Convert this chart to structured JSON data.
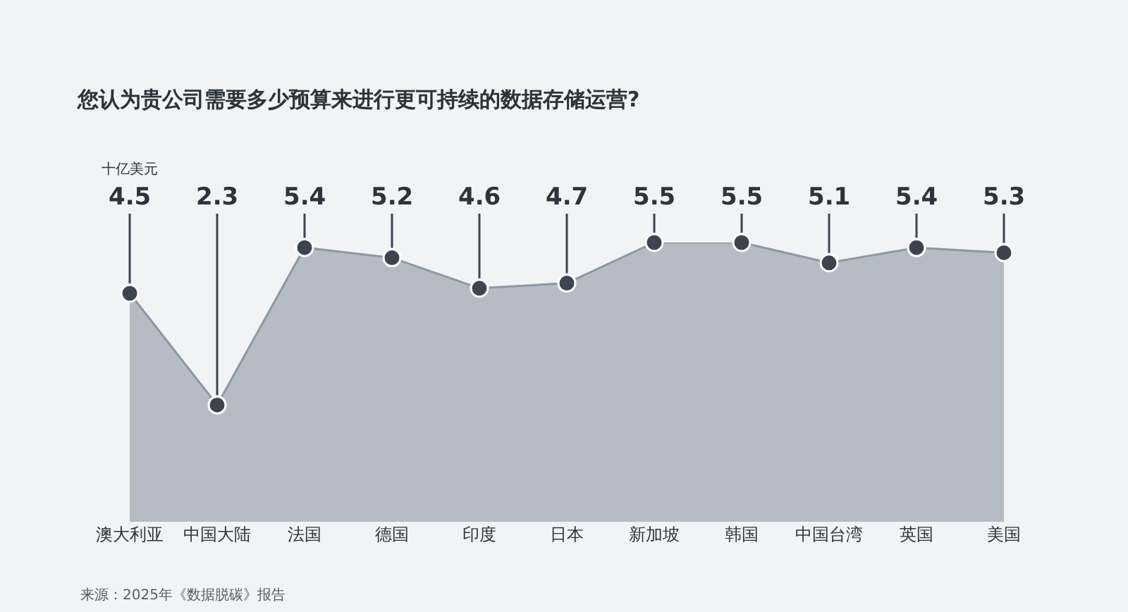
{
  "chart_data": {
    "type": "area",
    "title": "您认为贵公司需要多少预算来进行更可持续的数据存储运营?",
    "ylabel": "十亿美元",
    "categories": [
      "澳大利亚",
      "中国大陆",
      "法国",
      "德国",
      "印度",
      "日本",
      "新加坡",
      "韩国",
      "中国台湾",
      "英国",
      "美国"
    ],
    "series": [
      {
        "color": "#b5bcc5",
        "values": [
          4.5,
          2.3,
          5.4,
          5.2,
          4.6,
          4.7,
          5.5,
          5.5,
          5.1,
          5.4,
          5.3
        ]
      }
    ],
    "data_labels": true,
    "marker": "circle",
    "grid": false,
    "annotations": [
      "来源：2025年《数据脱碳》报告"
    ]
  }
}
